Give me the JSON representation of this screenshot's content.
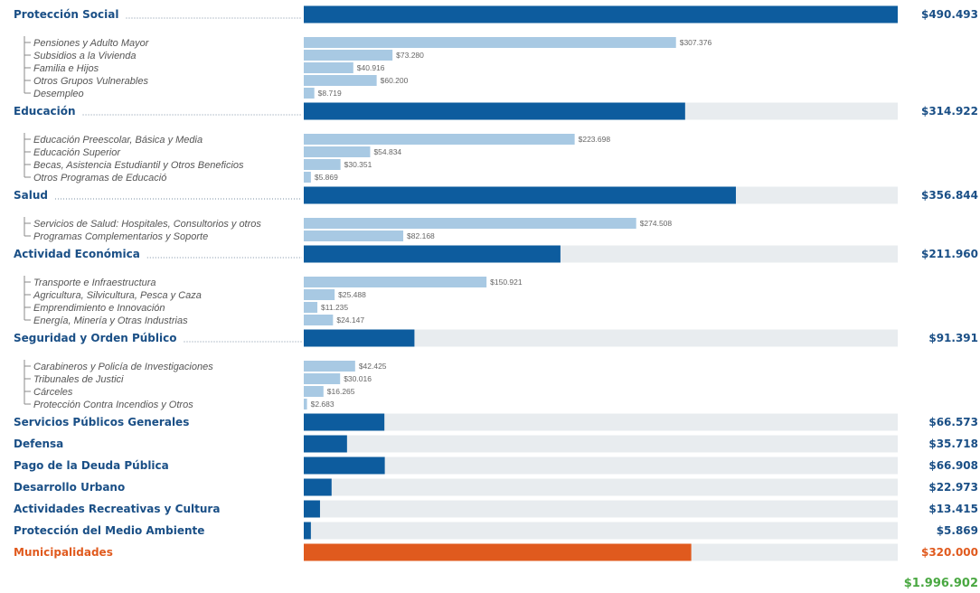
{
  "chart_data": {
    "type": "bar",
    "orientation": "horizontal",
    "xlim": [
      0,
      490493
    ],
    "grid": false,
    "colors": {
      "main": "#0d5c9e",
      "sub": "#a8c9e3",
      "track": "#e8ecef",
      "highlight": "#e05a1e",
      "total": "#4aa842",
      "label_text": "#1a4f86",
      "sub_text": "#555555"
    },
    "categories": [
      {
        "name": "Protección Social",
        "value": 490493,
        "display": "$490.493",
        "subcategories": [
          {
            "name": "Pensiones y Adulto Mayor",
            "value": 307376,
            "display": "$307.376"
          },
          {
            "name": "Subsidios a la Vivienda",
            "value": 73280,
            "display": "$73.280"
          },
          {
            "name": "Familia e Hijos",
            "value": 40916,
            "display": "$40.916"
          },
          {
            "name": "Otros Grupos Vulnerables",
            "value": 60200,
            "display": "$60.200"
          },
          {
            "name": "Desempleo",
            "value": 8719,
            "display": "$8.719"
          }
        ]
      },
      {
        "name": "Educación",
        "value": 314922,
        "display": "$314.922",
        "subcategories": [
          {
            "name": "Educación Preescolar, Básica y Media",
            "value": 223698,
            "display": "$223.698"
          },
          {
            "name": "Educación Superior",
            "value": 54834,
            "display": "$54.834"
          },
          {
            "name": "Becas, Asistencia Estudiantil y Otros Beneficios",
            "value": 30351,
            "display": "$30.351"
          },
          {
            "name": "Otros Programas de Educació",
            "value": 5869,
            "display": "$5.869"
          }
        ]
      },
      {
        "name": "Salud",
        "value": 356844,
        "display": "$356.844",
        "subcategories": [
          {
            "name": "Servicios de Salud: Hospitales, Consultorios y otros",
            "value": 274508,
            "display": "$274.508"
          },
          {
            "name": "Programas Complementarios y Soporte",
            "value": 82168,
            "display": "$82.168"
          }
        ]
      },
      {
        "name": "Actividad Económica",
        "value": 211960,
        "display": "$211.960",
        "subcategories": [
          {
            "name": "Transporte e Infraestructura",
            "value": 150921,
            "display": "$150.921"
          },
          {
            "name": "Agricultura, Silvicultura, Pesca y Caza",
            "value": 25488,
            "display": "$25.488"
          },
          {
            "name": "Emprendimiento e Innovación",
            "value": 11235,
            "display": "$11.235"
          },
          {
            "name": "Energía, Minería y Otras Industrias",
            "value": 24147,
            "display": "$24.147"
          }
        ]
      },
      {
        "name": "Seguridad y Orden Público",
        "value": 91391,
        "display": "$91.391",
        "subcategories": [
          {
            "name": "Carabineros y Policía de Investigaciones",
            "value": 42425,
            "display": "$42.425"
          },
          {
            "name": "Tribunales de Justici",
            "value": 30016,
            "display": "$30.016"
          },
          {
            "name": "Cárceles",
            "value": 16265,
            "display": "$16.265"
          },
          {
            "name": "Protección Contra Incendios y Otros",
            "value": 2683,
            "display": "$2.683"
          }
        ]
      },
      {
        "name": "Servicios Públicos Generales",
        "value": 66573,
        "display": "$66.573",
        "subcategories": []
      },
      {
        "name": "Defensa",
        "value": 35718,
        "display": "$35.718",
        "subcategories": []
      },
      {
        "name": "Pago de la Deuda Pública",
        "value": 66908,
        "display": "$66.908",
        "subcategories": []
      },
      {
        "name": "Desarrollo Urbano",
        "value": 22973,
        "display": "$22.973",
        "subcategories": []
      },
      {
        "name": "Actividades Recreativas y Cultura",
        "value": 13415,
        "display": "$13.415",
        "subcategories": []
      },
      {
        "name": "Protección del Medio Ambiente",
        "value": 5869,
        "display": "$5.869",
        "subcategories": []
      },
      {
        "name": "Municipalidades",
        "value": 320000,
        "display": "$320.000",
        "highlight": true,
        "subcategories": []
      }
    ],
    "total": {
      "value": 1996902,
      "display": "$1.996.902"
    }
  }
}
